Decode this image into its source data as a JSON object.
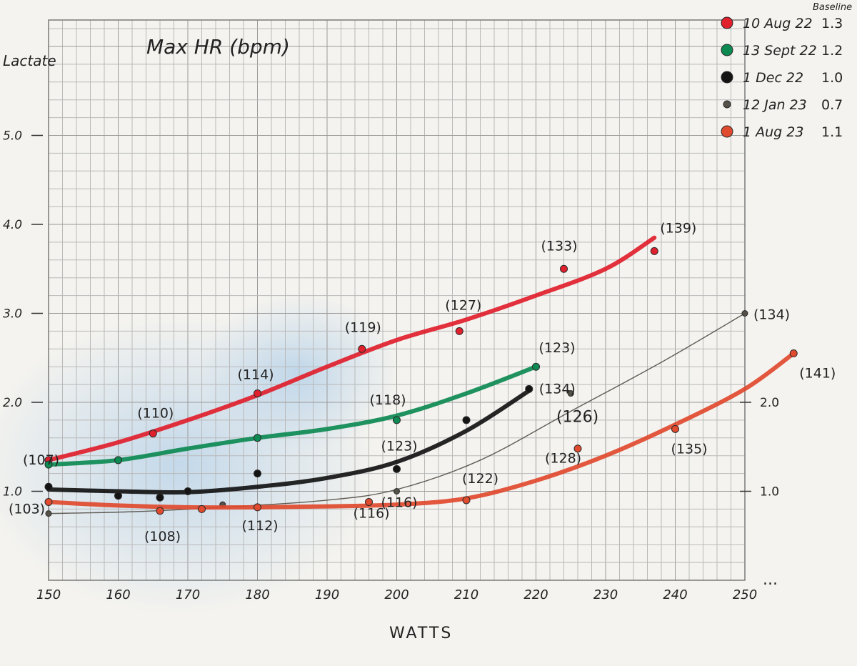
{
  "chart_data": {
    "type": "line",
    "title": "Max HR (bpm)",
    "xlabel": "WATTS",
    "ylabel": "Lactate",
    "xlim": [
      150,
      250
    ],
    "ylim": [
      0,
      6
    ],
    "x_ticks": [
      {
        "value": 150,
        "label": "150"
      },
      {
        "value": 160,
        "label": "160"
      },
      {
        "value": 170,
        "label": "170"
      },
      {
        "value": 180,
        "label": "180"
      },
      {
        "value": 190,
        "label": "190"
      },
      {
        "value": 200,
        "label": "200"
      },
      {
        "value": 210,
        "label": "210"
      },
      {
        "value": 220,
        "label": "220"
      },
      {
        "value": 230,
        "label": "230"
      },
      {
        "value": 240,
        "label": "240"
      },
      {
        "value": 250,
        "label": "250"
      }
    ],
    "y_ticks_left": [
      {
        "value": 1.0,
        "label": "1.0"
      },
      {
        "value": 2.0,
        "label": "2.0"
      },
      {
        "value": 3.0,
        "label": "3.0"
      },
      {
        "value": 4.0,
        "label": "4.0"
      },
      {
        "value": 5.0,
        "label": "5.0"
      }
    ],
    "y_ticks_right": [
      {
        "value": 1.0,
        "label": "1.0"
      },
      {
        "value": 2.0,
        "label": "2.0"
      }
    ],
    "x_axis_continuation": "...",
    "legend_header": "Baseline",
    "legend_position": "top-right",
    "grid": true,
    "series": [
      {
        "name": "10 Aug 22",
        "baseline": "1.3",
        "color": "#e0202c",
        "stroke_weight": "thick",
        "points": [
          {
            "x": 150,
            "y": 1.35,
            "hr": "(107)"
          },
          {
            "x": 165,
            "y": 1.65,
            "hr": "(110)"
          },
          {
            "x": 180,
            "y": 2.1,
            "hr": "(114)"
          },
          {
            "x": 195,
            "y": 2.6,
            "hr": "(119)"
          },
          {
            "x": 209,
            "y": 2.8,
            "hr": "(127)"
          },
          {
            "x": 224,
            "y": 3.5,
            "hr": "(133)"
          },
          {
            "x": 237,
            "y": 3.7,
            "hr": "(139)"
          }
        ],
        "curve": [
          [
            150,
            1.35
          ],
          [
            160,
            1.55
          ],
          [
            170,
            1.8
          ],
          [
            180,
            2.08
          ],
          [
            190,
            2.4
          ],
          [
            200,
            2.7
          ],
          [
            210,
            2.93
          ],
          [
            220,
            3.2
          ],
          [
            230,
            3.5
          ],
          [
            237,
            3.85
          ]
        ]
      },
      {
        "name": "13 Sept 22",
        "baseline": "1.2",
        "color": "#0d8a52",
        "stroke_weight": "thick",
        "points": [
          {
            "x": 150,
            "y": 1.3
          },
          {
            "x": 160,
            "y": 1.35
          },
          {
            "x": 180,
            "y": 1.6
          },
          {
            "x": 200,
            "y": 1.8,
            "hr": "(118)"
          },
          {
            "x": 220,
            "y": 2.4,
            "hr": "(123)"
          }
        ],
        "curve": [
          [
            150,
            1.3
          ],
          [
            160,
            1.35
          ],
          [
            170,
            1.48
          ],
          [
            180,
            1.6
          ],
          [
            190,
            1.7
          ],
          [
            200,
            1.85
          ],
          [
            210,
            2.1
          ],
          [
            220,
            2.4
          ]
        ]
      },
      {
        "name": "1 Dec 22",
        "baseline": "1.0",
        "color": "#141414",
        "stroke_weight": "thick",
        "points": [
          {
            "x": 150,
            "y": 1.05
          },
          {
            "x": 160,
            "y": 0.95
          },
          {
            "x": 166,
            "y": 0.93
          },
          {
            "x": 170,
            "y": 1.0
          },
          {
            "x": 180,
            "y": 1.2
          },
          {
            "x": 200,
            "y": 1.25,
            "hr": "(123)"
          },
          {
            "x": 210,
            "y": 1.8
          },
          {
            "x": 219,
            "y": 2.15,
            "hr": "(134)"
          }
        ],
        "curve": [
          [
            150,
            1.02
          ],
          [
            160,
            1.0
          ],
          [
            170,
            0.99
          ],
          [
            180,
            1.05
          ],
          [
            190,
            1.15
          ],
          [
            200,
            1.33
          ],
          [
            210,
            1.68
          ],
          [
            219,
            2.13
          ]
        ]
      },
      {
        "name": "12 Jan 23",
        "baseline": "0.7",
        "color": "#555048",
        "stroke_weight": "thin",
        "points": [
          {
            "x": 150,
            "y": 0.75
          },
          {
            "x": 175,
            "y": 0.85
          },
          {
            "x": 200,
            "y": 1.0,
            "hr": "(116)"
          },
          {
            "x": 225,
            "y": 2.1
          },
          {
            "x": 250,
            "y": 3.0,
            "hr": "(134)"
          }
        ],
        "curve": [
          [
            150,
            0.75
          ],
          [
            162,
            0.77
          ],
          [
            175,
            0.82
          ],
          [
            190,
            0.9
          ],
          [
            200,
            1.02
          ],
          [
            212,
            1.35
          ],
          [
            225,
            1.9
          ],
          [
            238,
            2.45
          ],
          [
            250,
            3.0
          ]
        ]
      },
      {
        "name": "1 Aug 23",
        "baseline": "1.1",
        "color": "#e04a2e",
        "stroke_weight": "thick",
        "points": [
          {
            "x": 150,
            "y": 0.88,
            "hr": "(103)"
          },
          {
            "x": 166,
            "y": 0.78,
            "hr": "(108)"
          },
          {
            "x": 172,
            "y": 0.8
          },
          {
            "x": 180,
            "y": 0.82,
            "hr": "(112)"
          },
          {
            "x": 196,
            "y": 0.88,
            "hr": "(116)"
          },
          {
            "x": 210,
            "y": 0.9,
            "hr": "(122)"
          },
          {
            "x": 226,
            "y": 1.48,
            "hr": "(128)"
          },
          {
            "x": 240,
            "y": 1.7,
            "hr": "(135)"
          },
          {
            "x": 257,
            "y": 2.55,
            "hr": "(141)"
          }
        ],
        "curve": [
          [
            150,
            0.88
          ],
          [
            160,
            0.84
          ],
          [
            170,
            0.82
          ],
          [
            180,
            0.82
          ],
          [
            190,
            0.83
          ],
          [
            200,
            0.85
          ],
          [
            210,
            0.92
          ],
          [
            220,
            1.12
          ],
          [
            230,
            1.4
          ],
          [
            240,
            1.75
          ],
          [
            250,
            2.15
          ],
          [
            257,
            2.55
          ]
        ]
      }
    ],
    "annotations": [
      {
        "text": "(126)",
        "x": 226,
        "y": 1.7
      }
    ]
  }
}
